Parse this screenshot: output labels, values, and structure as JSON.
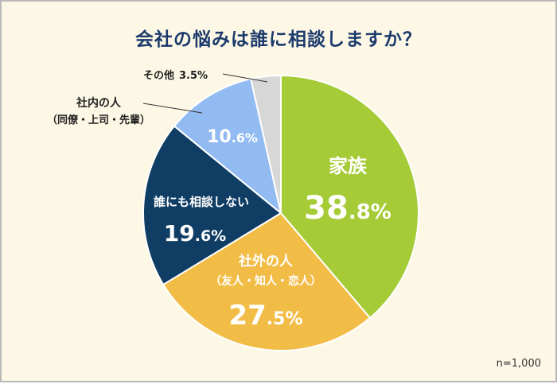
{
  "chart_data": {
    "type": "pie",
    "title": "会社の悩みは誰に相談しますか？",
    "note": "n=1,000",
    "slices": [
      {
        "label": "家族",
        "value": 38.8,
        "display": {
          "big": "38",
          "small": ".8%"
        },
        "color": "#a5cb37"
      },
      {
        "label": "社外の人",
        "sublabel": "（友人・知人・恋人）",
        "value": 27.5,
        "display": {
          "big": "27",
          "small": ".5%"
        },
        "color": "#f2bd47"
      },
      {
        "label": "誰にも相談しない",
        "value": 19.6,
        "display": {
          "big": "19",
          "small": ".6%"
        },
        "color": "#0f3d63"
      },
      {
        "label": "社内の人",
        "sublabel": "（同僚・上司・先輩）",
        "value": 10.6,
        "display": {
          "big": "10",
          "small": ".6%"
        },
        "color": "#92bbf2"
      },
      {
        "label": "その他",
        "value": 3.5,
        "display_text": "3.5%",
        "color": "#d7d7d7"
      }
    ]
  }
}
